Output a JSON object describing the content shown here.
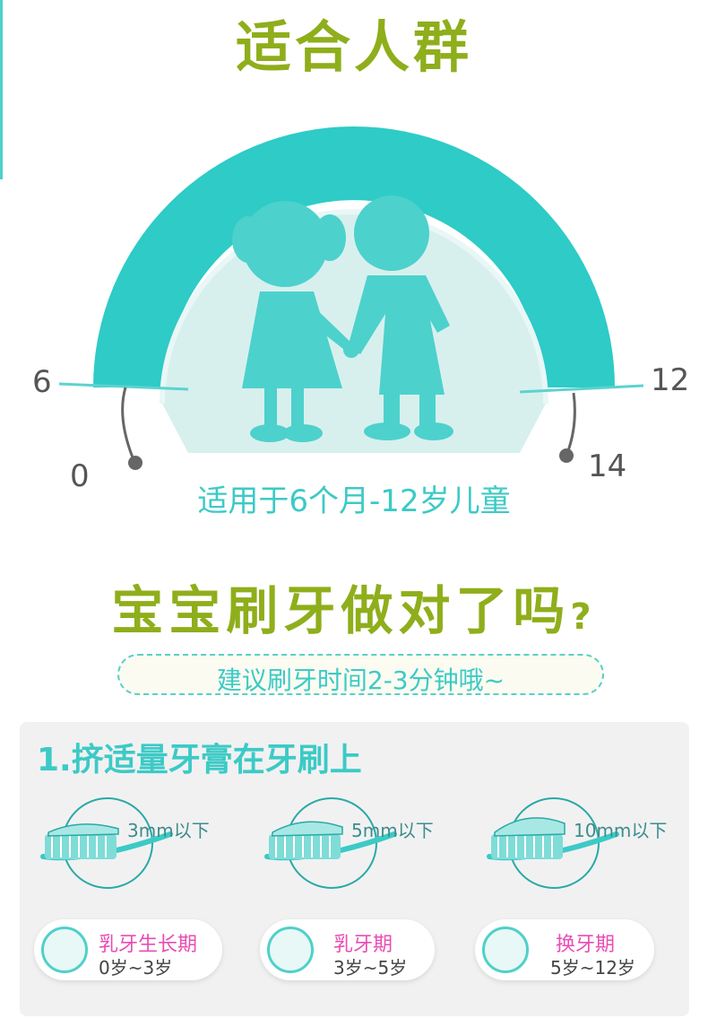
{
  "section1": {
    "title": "适合人群",
    "gauge": {
      "labels": {
        "left_outer": "6",
        "left_inner": "0",
        "right_outer": "12",
        "right_inner": "14"
      }
    },
    "suitable_text": "适用于6个月-12岁儿童"
  },
  "section2": {
    "title": "宝宝刷牙做对了吗",
    "title_mark": "?",
    "tip": "建议刷牙时间2-3分钟哦~"
  },
  "step1": {
    "title": "1.挤适量牙膏在牙刷上",
    "items": [
      {
        "amount": "3mm以下",
        "stage": "乳牙生长期",
        "age_range": "0岁~3岁"
      },
      {
        "amount": "5mm以下",
        "stage": "乳牙期",
        "age_range": "3岁~5岁"
      },
      {
        "amount": "10mm以下",
        "stage": "换牙期",
        "age_range": "5岁~12岁"
      }
    ]
  },
  "colors": {
    "accent": "#2ecbc7",
    "title_green": "#8fae1b",
    "pink": "#e94db4"
  }
}
